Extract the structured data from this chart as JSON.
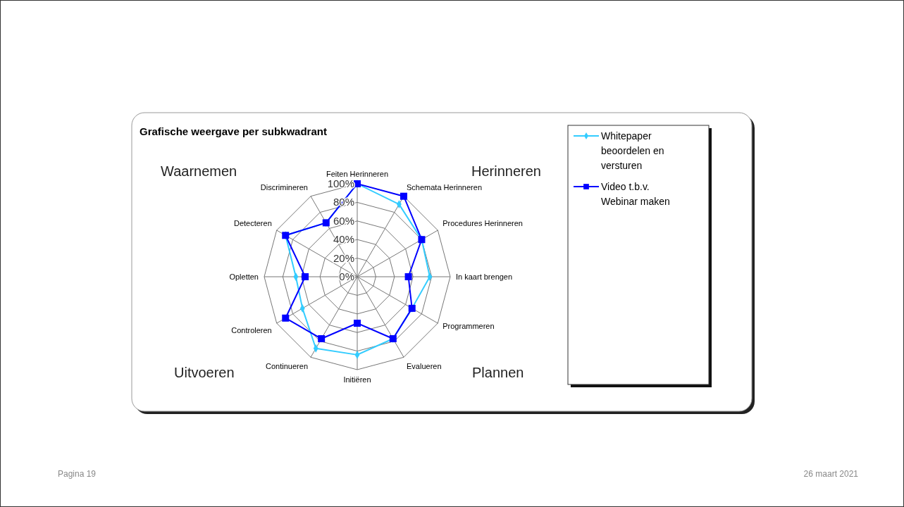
{
  "chart_data": {
    "type": "radar",
    "title": "Grafische weergave per subkwadrant",
    "categories": [
      "Feiten Herinneren",
      "Schemata Herinneren",
      "Procedures Herinneren",
      "In kaart brengen",
      "Programmeren",
      "Evalueren",
      "Initiëren",
      "Continueren",
      "Controleren",
      "Opletten",
      "Detecteren",
      "Discrimineren"
    ],
    "series": [
      {
        "name": "Whitepaper beoordelen en versturen",
        "color": "#33ccff",
        "marker": "diamond",
        "values": [
          100,
          90,
          80,
          78,
          68,
          77,
          84,
          89,
          68,
          66,
          89,
          67
        ]
      },
      {
        "name": "Video t.b.v. Webinar maken",
        "color": "#0000ff",
        "marker": "square",
        "values": [
          100,
          100,
          80,
          55,
          68,
          77,
          50,
          77,
          89,
          56,
          89,
          67
        ]
      }
    ],
    "ylim": [
      0,
      100
    ],
    "yticks": [
      {
        "value": 0,
        "label": "0%"
      },
      {
        "value": 20,
        "label": "20%"
      },
      {
        "value": 40,
        "label": "40%"
      },
      {
        "value": 60,
        "label": "60%"
      },
      {
        "value": 80,
        "label": "80%"
      },
      {
        "value": 100,
        "label": "100%"
      }
    ],
    "grid": true,
    "legend": "right",
    "annotations": [
      "Waarnemen",
      "Herinneren",
      "Uitvoeren",
      "Plannen",
      "Pagina 19",
      "26 maart 2021"
    ]
  }
}
